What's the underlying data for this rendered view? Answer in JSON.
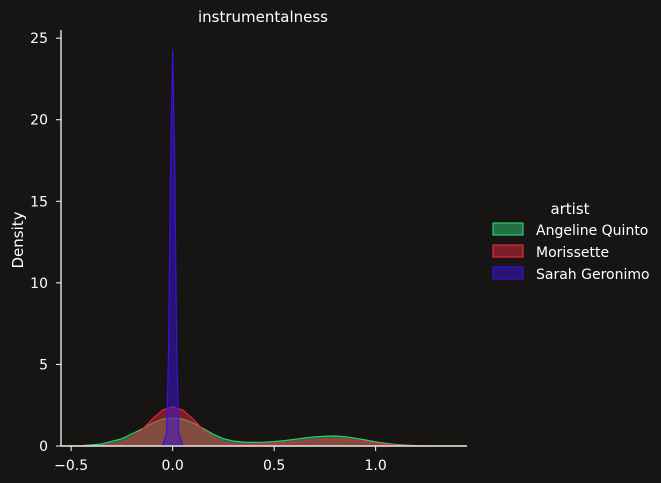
{
  "chart_data": {
    "type": "area",
    "title": "instrumentalness",
    "xlabel": "",
    "ylabel": "Density",
    "xlim": [
      -0.55,
      1.45
    ],
    "ylim": [
      0,
      25.5
    ],
    "xticks": [
      -0.5,
      0.0,
      0.5,
      1.0
    ],
    "xtick_labels": [
      "−0.5",
      "0.0",
      "0.5",
      "1.0"
    ],
    "yticks": [
      0,
      5,
      10,
      15,
      20,
      25
    ],
    "ytick_labels": [
      "0",
      "5",
      "10",
      "15",
      "20",
      "25"
    ],
    "grid": false,
    "legend": {
      "title": "artist",
      "placement": "right"
    },
    "series": [
      {
        "name": "Angeline Quinto",
        "color": "#2ecc71",
        "x": [
          -0.55,
          -0.45,
          -0.35,
          -0.25,
          -0.15,
          -0.1,
          -0.05,
          0.0,
          0.05,
          0.1,
          0.15,
          0.2,
          0.25,
          0.3,
          0.35,
          0.4,
          0.45,
          0.5,
          0.55,
          0.6,
          0.65,
          0.7,
          0.75,
          0.8,
          0.85,
          0.9,
          0.95,
          1.0,
          1.05,
          1.1,
          1.2,
          1.3,
          1.4,
          1.45
        ],
        "y": [
          0.0,
          0.02,
          0.12,
          0.45,
          1.05,
          1.4,
          1.65,
          1.72,
          1.65,
          1.42,
          1.08,
          0.72,
          0.45,
          0.3,
          0.24,
          0.22,
          0.23,
          0.27,
          0.33,
          0.41,
          0.49,
          0.56,
          0.6,
          0.61,
          0.57,
          0.48,
          0.37,
          0.26,
          0.16,
          0.09,
          0.02,
          0.0,
          0.0,
          0.0
        ]
      },
      {
        "name": "Morissette",
        "color": "#e0283c",
        "x": [
          -0.55,
          -0.45,
          -0.35,
          -0.25,
          -0.2,
          -0.15,
          -0.1,
          -0.05,
          0.0,
          0.05,
          0.1,
          0.15,
          0.2,
          0.25,
          0.3,
          0.35,
          0.4,
          0.45,
          0.5,
          0.55,
          0.6,
          0.65,
          0.7,
          0.75,
          0.8,
          0.85,
          0.9,
          0.95,
          1.0,
          1.05,
          1.1,
          1.2,
          1.3,
          1.45
        ],
        "y": [
          0.0,
          0.0,
          0.02,
          0.2,
          0.5,
          1.0,
          1.65,
          2.2,
          2.4,
          2.2,
          1.65,
          1.0,
          0.5,
          0.22,
          0.12,
          0.1,
          0.1,
          0.12,
          0.15,
          0.2,
          0.26,
          0.32,
          0.38,
          0.41,
          0.42,
          0.39,
          0.33,
          0.25,
          0.17,
          0.1,
          0.05,
          0.01,
          0.0,
          0.0
        ]
      },
      {
        "name": "Sarah Geronimo",
        "color": "#3a12d8",
        "x": [
          -0.05,
          -0.03,
          -0.02,
          -0.01,
          0.0,
          0.01,
          0.02,
          0.03,
          0.05
        ],
        "y": [
          0.0,
          0.8,
          6.0,
          17.5,
          24.3,
          17.5,
          6.0,
          0.8,
          0.0
        ]
      }
    ]
  }
}
